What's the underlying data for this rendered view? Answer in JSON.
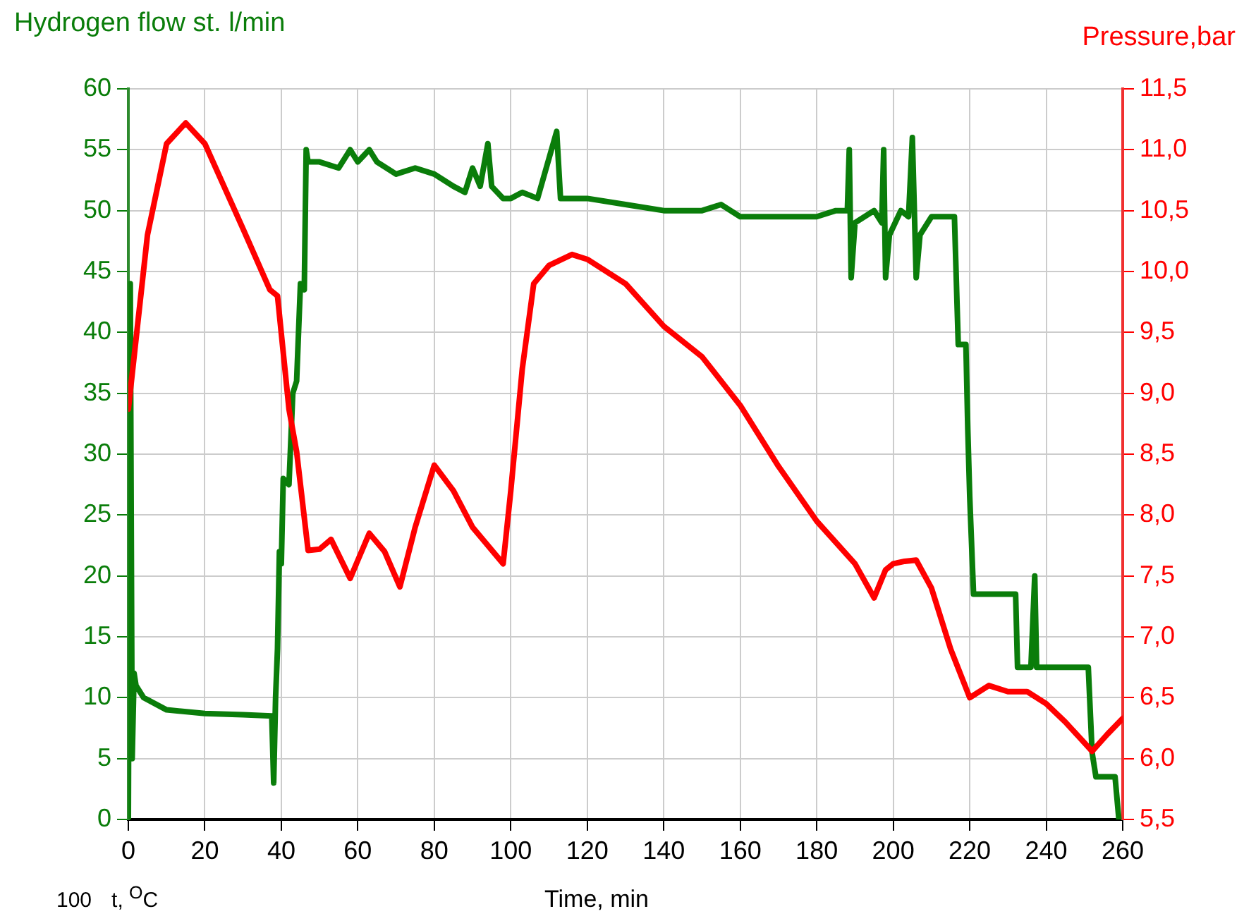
{
  "chart_data": {
    "type": "line",
    "xlabel": "Time, min",
    "ylabel": "Hydrogen flow st. l/min",
    "y2label": "Pressure,bar",
    "xlim": [
      0,
      260
    ],
    "xticks": [
      0,
      20,
      40,
      60,
      80,
      100,
      120,
      140,
      160,
      180,
      200,
      220,
      240,
      260
    ],
    "ylim": [
      0,
      60
    ],
    "yticks": [
      0,
      5,
      10,
      15,
      20,
      25,
      30,
      35,
      40,
      45,
      50,
      55,
      60
    ],
    "y2lim": [
      5.5,
      11.5
    ],
    "y2ticks": [
      {
        "value": 5.5,
        "label": "5,5"
      },
      {
        "value": 6,
        "label": "6,0"
      },
      {
        "value": 6.5,
        "label": "6,5"
      },
      {
        "value": 7,
        "label": "7,0"
      },
      {
        "value": 7.5,
        "label": "7,5"
      },
      {
        "value": 8,
        "label": "8,0"
      },
      {
        "value": 8.5,
        "label": "8,5"
      },
      {
        "value": 9,
        "label": "9,0"
      },
      {
        "value": 9.5,
        "label": "9,5"
      },
      {
        "value": 10,
        "label": "10,0"
      },
      {
        "value": 10.5,
        "label": "10,5"
      },
      {
        "value": 11,
        "label": "11,0"
      },
      {
        "value": 11.5,
        "label": "11,5"
      }
    ],
    "grid": true,
    "legend": false,
    "marker": "none",
    "line_style": "solid",
    "annotations": [
      "100",
      "t, $^{O}$C"
    ],
    "series": [
      {
        "color": "#0a7d0a",
        "x": [
          0,
          0.5,
          1,
          1.5,
          2,
          4,
          10,
          20,
          30,
          37.5,
          38,
          38.5,
          39,
          39.5,
          40,
          40.5,
          42,
          43,
          44,
          45,
          46,
          46.5,
          47,
          50,
          55,
          58,
          60,
          63,
          65,
          70,
          75,
          80,
          85,
          88,
          90,
          92,
          94,
          95,
          98,
          100,
          103,
          107,
          112,
          113,
          120,
          130,
          140,
          150,
          155,
          160,
          170,
          180,
          185,
          188,
          188.5,
          189,
          190,
          195,
          197,
          197.5,
          198,
          199,
          202,
          204,
          205,
          206,
          207,
          210,
          216,
          217,
          219,
          219.5,
          220,
          221,
          230,
          232,
          232.5,
          236,
          237,
          237.5,
          251,
          252,
          253,
          258,
          259
        ],
        "values": [
          0,
          44,
          5,
          12,
          11,
          10,
          9,
          8.7,
          8.6,
          8.5,
          3,
          10,
          14,
          22,
          21,
          28,
          27.5,
          35,
          36,
          44,
          43.5,
          55,
          54,
          54,
          53.5,
          55,
          54,
          55,
          54,
          53,
          53.5,
          53,
          52,
          51.5,
          53.5,
          52,
          55.5,
          52,
          51,
          51,
          51.5,
          51,
          56.5,
          51,
          51,
          50.5,
          50,
          50,
          50.5,
          49.5,
          49.5,
          49.5,
          50,
          50,
          55,
          44.5,
          49,
          50,
          49,
          55,
          44.5,
          48,
          50,
          49.5,
          56,
          44.5,
          48,
          49.5,
          49.5,
          39,
          39,
          32,
          26.5,
          18.5,
          18.5,
          18.5,
          12.5,
          12.5,
          20,
          12.5,
          12.5,
          5.5,
          3.5,
          3.5,
          0
        ]
      },
      {
        "color": "#ff0000",
        "axis": "y2",
        "x": [
          0,
          5,
          10,
          15,
          20,
          25,
          30,
          37,
          39,
          42,
          44,
          47,
          50,
          53,
          58,
          63,
          67,
          71,
          75,
          80,
          85,
          90,
          98,
          100,
          103,
          106,
          110,
          116,
          120,
          130,
          140,
          150,
          160,
          170,
          180,
          190,
          195,
          198,
          200,
          203,
          206,
          210,
          215,
          220,
          225,
          230,
          235,
          240,
          245,
          252,
          256,
          260
        ],
        "values": [
          8.87,
          10.3,
          11.05,
          11.22,
          11.05,
          10.7,
          10.35,
          9.85,
          9.8,
          8.87,
          8.52,
          7.71,
          7.72,
          7.8,
          7.48,
          7.85,
          7.7,
          7.41,
          7.9,
          8.41,
          8.2,
          7.9,
          7.6,
          8.2,
          9.2,
          9.9,
          10.05,
          10.14,
          10.1,
          9.9,
          9.55,
          9.3,
          8.9,
          8.4,
          7.95,
          7.6,
          7.32,
          7.55,
          7.6,
          7.62,
          7.63,
          7.4,
          6.9,
          6.5,
          6.6,
          6.55,
          6.55,
          6.45,
          6.3,
          6.06,
          6.2,
          6.33
        ]
      }
    ]
  }
}
